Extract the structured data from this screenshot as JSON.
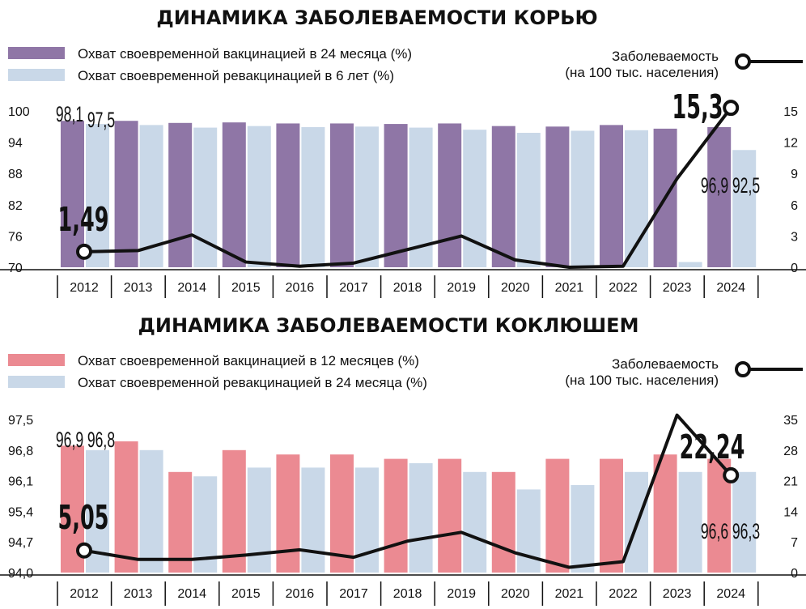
{
  "colors": {
    "measles_vax": "#8f76a6",
    "measles_revax": "#c9d8e8",
    "pertussis_vax": "#eb8a92",
    "pertussis_revax": "#c9d8e8",
    "line": "#111111"
  },
  "chart_data": [
    {
      "type": "bar",
      "title": "ДИНАМИКА ЗАБОЛЕВАЕМОСТИ КОРЬЮ",
      "categories": [
        "2012",
        "2013",
        "2014",
        "2015",
        "2016",
        "2017",
        "2018",
        "2019",
        "2020",
        "2021",
        "2022",
        "2023",
        "2024"
      ],
      "series": [
        {
          "name": "Охват своевременной вакцинацией в 24 месяца (%)",
          "values": [
            98.1,
            98.1,
            97.7,
            97.8,
            97.6,
            97.6,
            97.5,
            97.6,
            97.1,
            97.0,
            97.3,
            96.6,
            96.9
          ]
        },
        {
          "name": "Охват своевременной ревакцинацией в 6 лет (%)",
          "values": [
            97.5,
            97.3,
            96.8,
            97.1,
            96.9,
            97.0,
            96.8,
            96.4,
            95.8,
            96.2,
            96.3,
            71.0,
            92.5
          ]
        }
      ],
      "line_series": {
        "name": "Заболеваемость\n(на 100 тыс. населения)",
        "name_line1": "Заболеваемость",
        "name_line2": "(на 100 тыс. населения)",
        "values": [
          1.49,
          1.6,
          3.1,
          0.5,
          0.1,
          0.4,
          1.7,
          3.0,
          0.7,
          0.0,
          0.1,
          8.5,
          15.3
        ]
      },
      "left_ticks": [
        "100",
        "94",
        "88",
        "82",
        "76",
        "70"
      ],
      "right_ticks": [
        "15",
        "12",
        "9",
        "6",
        "3",
        "0"
      ],
      "ylim_left": [
        70,
        100
      ],
      "ylim_right": [
        0,
        15
      ],
      "labels": {
        "first_vax": "98,1",
        "first_revax": "97,5",
        "last_vax": "96,9",
        "last_revax": "92,5",
        "first_line": "1,49",
        "last_line": "15,3"
      }
    },
    {
      "type": "bar",
      "title": "ДИНАМИКА ЗАБОЛЕВАЕМОСТИ КОКЛЮШЕМ",
      "categories": [
        "2012",
        "2013",
        "2014",
        "2015",
        "2016",
        "2017",
        "2018",
        "2019",
        "2020",
        "2021",
        "2022",
        "2023",
        "2024"
      ],
      "series": [
        {
          "name": "Охват своевременной вакцинацией в 12 месяцев (%)",
          "values": [
            96.9,
            97.0,
            96.3,
            96.8,
            96.7,
            96.7,
            96.6,
            96.6,
            96.3,
            96.6,
            96.6,
            96.7,
            96.6
          ]
        },
        {
          "name": "Охват своевременной ревакцинацией в 24 месяца (%)",
          "values": [
            96.8,
            96.8,
            96.2,
            96.4,
            96.4,
            96.4,
            96.5,
            96.3,
            95.9,
            96.0,
            96.3,
            96.3,
            96.3
          ]
        }
      ],
      "line_series": {
        "name": "Заболеваемость\n(на 100 тыс. населения)",
        "name_line1": "Заболеваемость",
        "name_line2": "(на 100 тыс. населения)",
        "values": [
          5.05,
          3.0,
          3.0,
          4.0,
          5.2,
          3.5,
          7.2,
          9.2,
          4.5,
          1.2,
          2.5,
          36.0,
          22.24
        ]
      },
      "left_ticks": [
        "97,5",
        "96,8",
        "96,1",
        "95,4",
        "94,7",
        "94,0"
      ],
      "right_ticks": [
        "35",
        "28",
        "21",
        "14",
        "7",
        "0"
      ],
      "ylim_left": [
        94.0,
        97.5
      ],
      "ylim_right": [
        0,
        35
      ],
      "labels": {
        "first_vax": "96,9",
        "first_revax": "96,8",
        "last_vax": "96,6",
        "last_revax": "96,3",
        "first_line": "5,05",
        "last_line": "22,24"
      }
    }
  ]
}
